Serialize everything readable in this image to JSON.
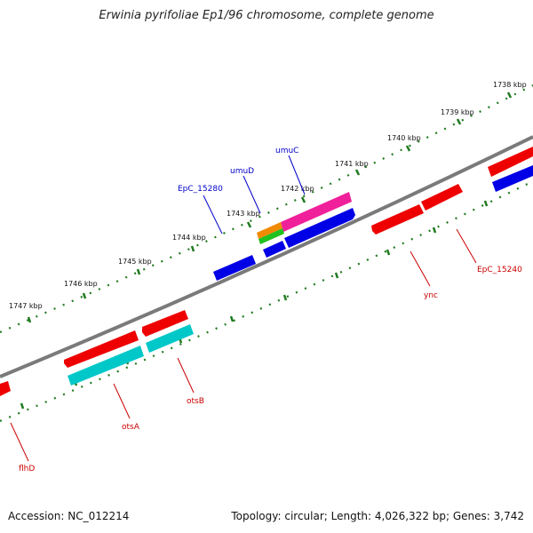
{
  "title": "Erwinia pyrifoliae Ep1/96 chromosome, complete genome",
  "footer": {
    "accession": "Accession: NC_012214",
    "info": "Topology: circular; Length: 4,026,322 bp; Genes: 3,742"
  },
  "colors": {
    "backbone": "#7a7a7a",
    "ticks": "#1f7a1f",
    "red": "#ee0000",
    "blue": "#0000e6",
    "cyan": "#00c8c8",
    "magenta": "#f0209a",
    "orange": "#f08a00",
    "green": "#20c020",
    "label_blue": "#0000cc",
    "label_red": "#cc0000"
  },
  "scale": {
    "tick_labels": [
      "1738 kbp",
      "1739 kbp",
      "1740 kbp",
      "1741 kbp",
      "1742 kbp",
      "1743 kbp",
      "1744 kbp",
      "1745 kbp",
      "1746 kbp",
      "1747 kbp"
    ]
  },
  "gene_labels": [
    {
      "text": "umuC",
      "strand": "forward"
    },
    {
      "text": "umuD",
      "strand": "forward"
    },
    {
      "text": "EpC_15280",
      "strand": "forward"
    },
    {
      "text": "EpC_15240",
      "strand": "reverse"
    },
    {
      "text": "ync",
      "strand": "reverse"
    },
    {
      "text": "otsB",
      "strand": "reverse"
    },
    {
      "text": "otsA",
      "strand": "reverse"
    },
    {
      "text": "flhD",
      "strand": "reverse"
    }
  ]
}
